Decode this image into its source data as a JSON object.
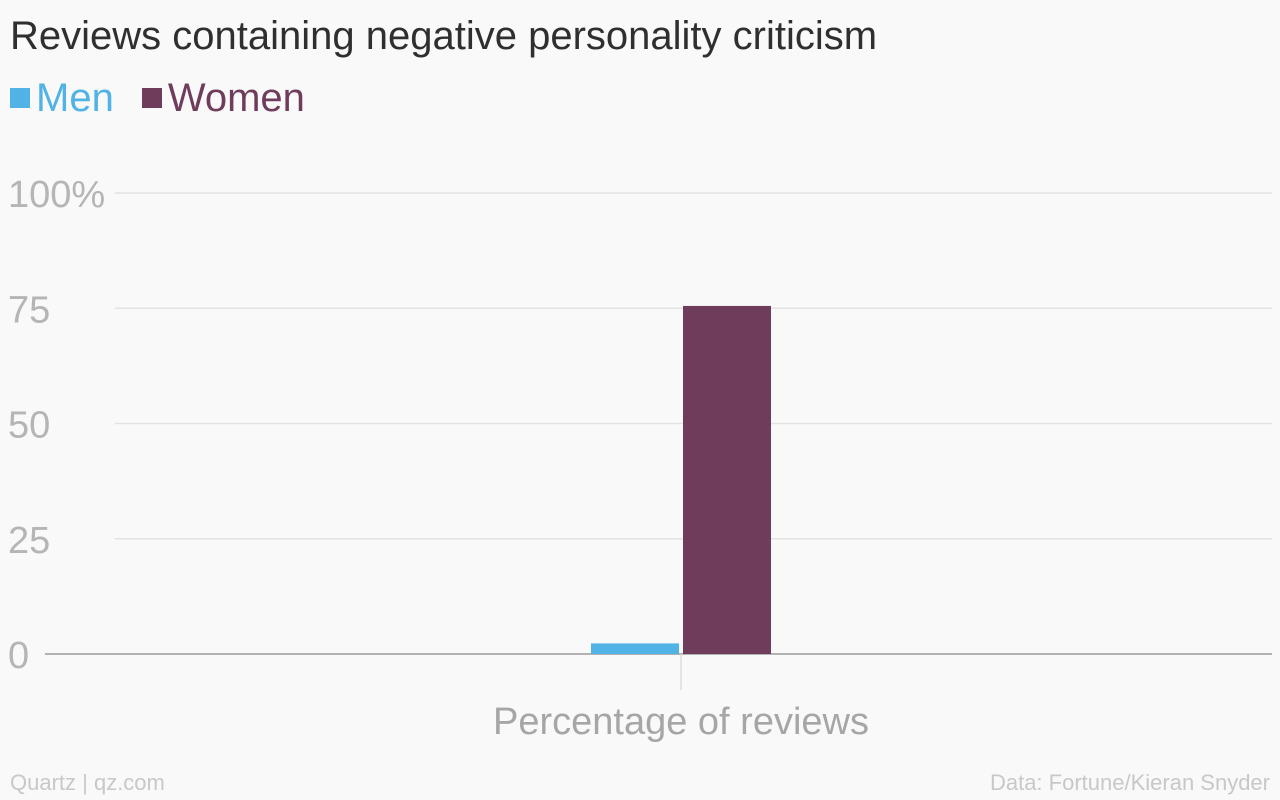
{
  "chart_data": {
    "type": "bar",
    "title": "Reviews containing negative personality criticism",
    "categories": [
      "Percentage of reviews"
    ],
    "series": [
      {
        "name": "Men",
        "values": [
          2.3
        ],
        "color": "#51b2e5"
      },
      {
        "name": "Women",
        "values": [
          75.5
        ],
        "color": "#703c5c"
      }
    ],
    "xlabel": "Percentage of reviews",
    "ylabel": "",
    "ylim": [
      0,
      100
    ],
    "yticks": [
      0,
      25,
      50,
      75,
      100
    ],
    "ytick_labels": [
      "0",
      "25",
      "50",
      "75",
      "100%"
    ],
    "grid": true,
    "legend_position": "top-left"
  },
  "footer": {
    "source_left": "Quartz | qz.com",
    "source_right": "Data: Fortune/Kieran Snyder"
  }
}
